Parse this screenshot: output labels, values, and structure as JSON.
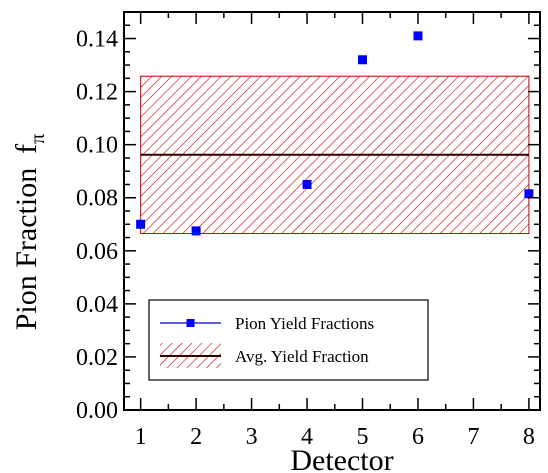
{
  "chart_data": {
    "type": "scatter",
    "xlabel": "Detector",
    "ylabel": "Pion Fraction",
    "ylabel_symbol": "f",
    "ylabel_subscript": "π",
    "xlim": [
      0.7,
      8.2
    ],
    "ylim": [
      0.0,
      0.15
    ],
    "x_ticks": [
      1,
      2,
      3,
      4,
      5,
      6,
      7,
      8
    ],
    "x_tick_labels": [
      "1",
      "2",
      "3",
      "4",
      "5",
      "6",
      "7",
      "8"
    ],
    "y_ticks": [
      0.0,
      0.02,
      0.04,
      0.06,
      0.08,
      0.1,
      0.12,
      0.14
    ],
    "y_tick_labels": [
      "0.00",
      "0.02",
      "0.04",
      "0.06",
      "0.08",
      "0.10",
      "0.12",
      "0.14"
    ],
    "grid": false,
    "legend_position": "bottom-left",
    "series": [
      {
        "name": "Pion Yield Fractions",
        "kind": "points",
        "marker": "square",
        "color": "#0000ff",
        "x": [
          1,
          2,
          4,
          5,
          6,
          8
        ],
        "y": [
          0.07,
          0.0675,
          0.085,
          0.132,
          0.141,
          0.0815
        ]
      },
      {
        "name": "Avg. Yield Fraction",
        "kind": "line_with_band",
        "line_color": "#330000",
        "band_color": "#cc0000",
        "x_range": [
          1,
          8
        ],
        "value": 0.0962,
        "band": [
          0.0665,
          0.1258
        ]
      }
    ]
  }
}
